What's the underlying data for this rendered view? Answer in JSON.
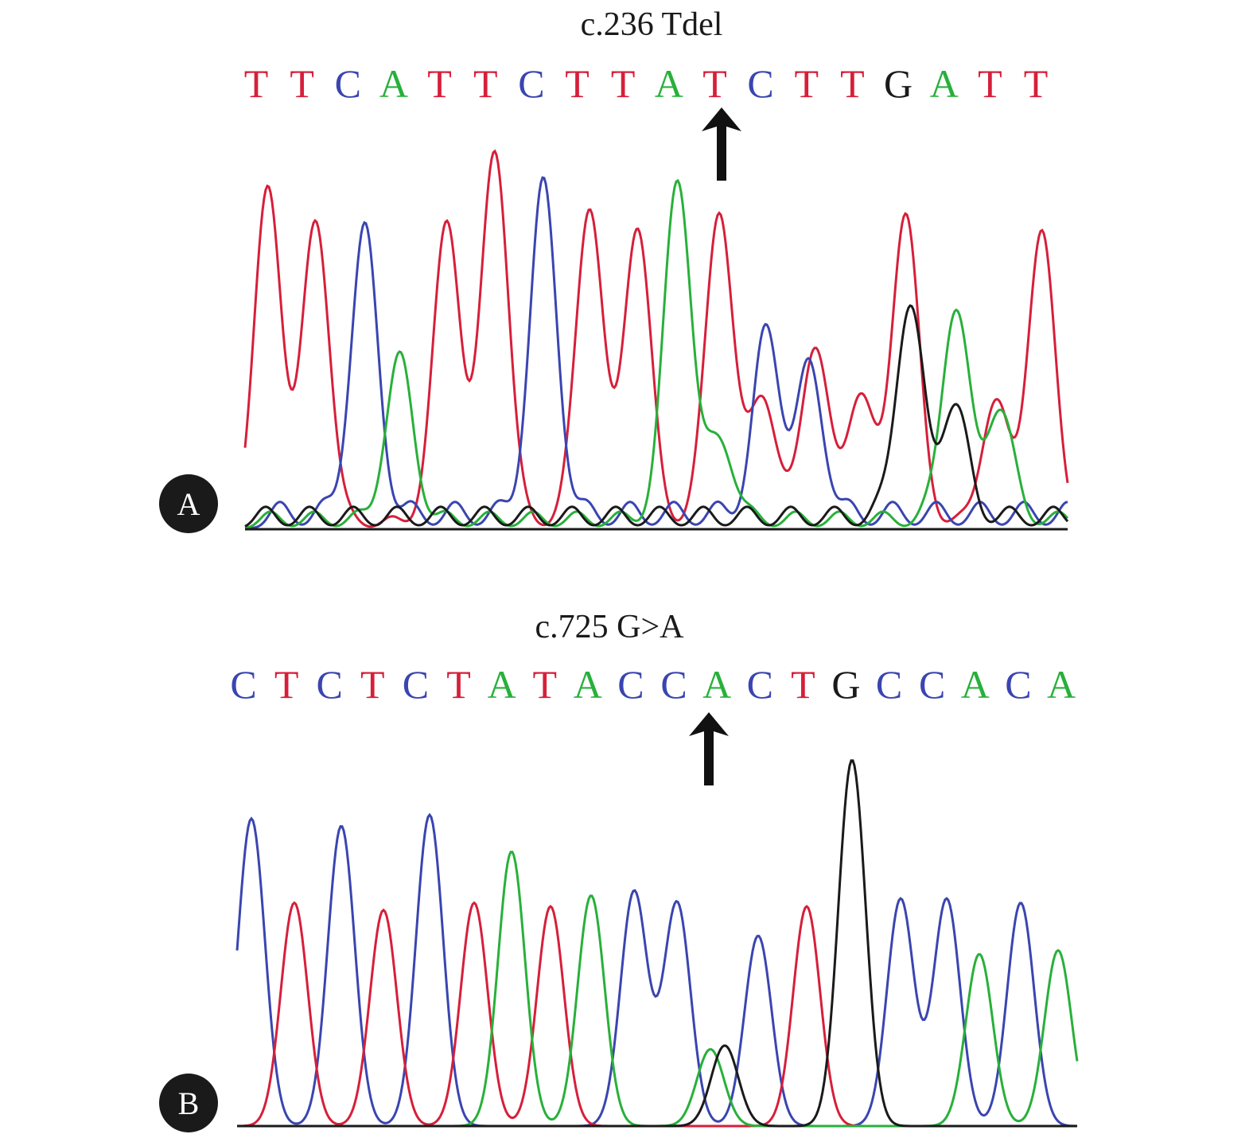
{
  "colors": {
    "A": "#28b03a",
    "C": "#3a45b0",
    "G": "#1a1a1a",
    "T": "#d61f3a",
    "baseline": "#1a1a1a"
  },
  "icons": {
    "arrow": "up-arrow-icon"
  },
  "panels": [
    {
      "label": "A",
      "title": "c.236 Tdel",
      "sequence": [
        "T",
        "T",
        "C",
        "A",
        "T",
        "T",
        "C",
        "T",
        "T",
        "A",
        "T",
        "C",
        "T",
        "T",
        "G",
        "A",
        "T",
        "T"
      ],
      "marked_position": 11
    },
    {
      "label": "B",
      "title": "c.725 G>A",
      "sequence": [
        "C",
        "T",
        "C",
        "T",
        "C",
        "T",
        "A",
        "T",
        "A",
        "C",
        "C",
        "A",
        "C",
        "T",
        "G",
        "C",
        "C",
        "A",
        "C",
        "A"
      ],
      "marked_position": 12
    }
  ],
  "chart_data": [
    {
      "type": "line",
      "title": "c.236 Tdel",
      "xlabel": "",
      "ylabel": "",
      "ylim": [
        0,
        1
      ],
      "grid": false,
      "series": [
        {
          "name": "T",
          "values": [
            0.83,
            0.75,
            0.75,
            0.93,
            0.79,
            0.74,
            0.78,
            0.32,
            0.44,
            0.32,
            0.77,
            0.3,
            0.72
          ]
        },
        {
          "name": "C",
          "values": [
            0.7,
            0.81,
            0.45,
            0.36
          ]
        },
        {
          "name": "A",
          "values": [
            0.4,
            0.85,
            0.2,
            0.53,
            0.28
          ]
        },
        {
          "name": "G",
          "values": [
            0.53,
            0.28
          ]
        }
      ]
    },
    {
      "type": "line",
      "title": "c.725 G>A",
      "xlabel": "",
      "ylabel": "",
      "ylim": [
        0,
        1
      ],
      "grid": false,
      "series": [
        {
          "name": "C",
          "values": [
            0.84,
            0.82,
            0.85,
            0.64,
            0.61,
            0.52,
            0.62,
            0.62,
            0.61
          ]
        },
        {
          "name": "T",
          "values": [
            0.61,
            0.59,
            0.61,
            0.6,
            0.6
          ]
        },
        {
          "name": "A",
          "values": [
            0.75,
            0.63,
            0.21,
            0.47,
            0.48
          ]
        },
        {
          "name": "G",
          "values": [
            0.22,
            1.0
          ]
        }
      ]
    }
  ]
}
